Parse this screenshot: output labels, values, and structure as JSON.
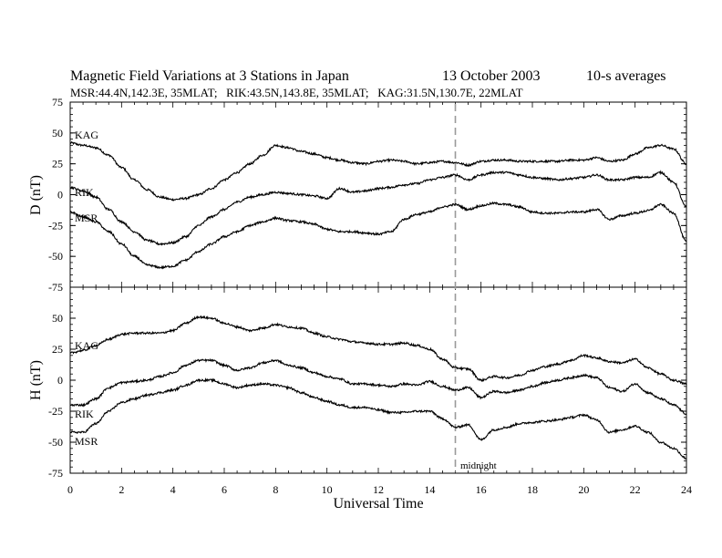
{
  "chart_data": {
    "type": "line",
    "title": "Magnetic Field Variations at 3 Stations in Japan",
    "date": "13 October 2003",
    "averaging": "10-s averages",
    "subtitle": "MSR:44.4N,142.3E, 35MLAT;   RIK:43.5N,143.8E, 35MLAT;   KAG:31.5N,130.7E, 22MLAT",
    "xlabel": "Universal Time",
    "xlim": [
      0,
      24
    ],
    "xticks": [
      0,
      2,
      4,
      6,
      8,
      10,
      12,
      14,
      16,
      18,
      20,
      22,
      24
    ],
    "marker": {
      "x": 15,
      "label": "midnight",
      "style": "dashed",
      "color": "#9a9a9a"
    },
    "panels": [
      {
        "ylabel": "D (nT)",
        "ylim": [
          -75,
          75
        ],
        "yticks": [
          -75,
          -50,
          -25,
          0,
          25,
          50,
          75
        ],
        "series": [
          {
            "name": "KAG",
            "x": [
              0,
              0.5,
              1,
              1.5,
              2,
              2.5,
              3,
              3.5,
              4,
              4.5,
              5,
              5.5,
              6,
              6.5,
              7,
              7.5,
              8,
              8.5,
              9,
              9.5,
              10,
              10.5,
              11,
              11.5,
              12,
              12.5,
              13,
              13.5,
              14,
              14.5,
              15,
              15.5,
              16,
              16.5,
              17,
              17.5,
              18,
              18.5,
              19,
              19.5,
              20,
              20.5,
              21,
              21.5,
              22,
              22.5,
              23,
              23.5,
              24
            ],
            "y": [
              42,
              40,
              38,
              32,
              22,
              12,
              4,
              -2,
              -4,
              -3,
              0,
              5,
              12,
              18,
              25,
              32,
              40,
              38,
              35,
              33,
              30,
              28,
              26,
              25,
              27,
              28,
              27,
              25,
              26,
              27,
              26,
              24,
              27,
              28,
              28,
              27,
              27,
              27,
              27,
              28,
              28,
              30,
              27,
              28,
              33,
              38,
              40,
              37,
              25
            ]
          },
          {
            "name": "RIK",
            "x": [
              0,
              0.5,
              1,
              1.5,
              2,
              2.5,
              3,
              3.5,
              4,
              4.5,
              5,
              5.5,
              6,
              6.5,
              7,
              7.5,
              8,
              8.5,
              9,
              9.5,
              10,
              10.5,
              11,
              11.5,
              12,
              12.5,
              13,
              13.5,
              14,
              14.5,
              15,
              15.5,
              16,
              16.5,
              17,
              17.5,
              18,
              18.5,
              19,
              19.5,
              20,
              20.5,
              21,
              21.5,
              22,
              22.5,
              23,
              23.5,
              24
            ],
            "y": [
              6,
              3,
              -2,
              -12,
              -22,
              -30,
              -37,
              -40,
              -39,
              -34,
              -25,
              -18,
              -12,
              -6,
              -2,
              0,
              2,
              1,
              0,
              -1,
              -3,
              5,
              2,
              3,
              5,
              6,
              8,
              9,
              12,
              14,
              16,
              12,
              16,
              18,
              18,
              16,
              14,
              13,
              12,
              13,
              14,
              16,
              12,
              12,
              14,
              14,
              18,
              10,
              -10
            ]
          },
          {
            "name": "MSR",
            "x": [
              0,
              0.5,
              1,
              1.5,
              2,
              2.5,
              3,
              3.5,
              4,
              4.5,
              5,
              5.5,
              6,
              6.5,
              7,
              7.5,
              8,
              8.5,
              9,
              9.5,
              10,
              10.5,
              11,
              11.5,
              12,
              12.5,
              13,
              13.5,
              14,
              14.5,
              15,
              15.5,
              16,
              16.5,
              17,
              17.5,
              18,
              18.5,
              19,
              19.5,
              20,
              20.5,
              21,
              21.5,
              22,
              22.5,
              23,
              23.5,
              24
            ],
            "y": [
              -14,
              -18,
              -22,
              -30,
              -40,
              -50,
              -57,
              -59,
              -58,
              -53,
              -46,
              -40,
              -34,
              -30,
              -25,
              -22,
              -19,
              -21,
              -22,
              -24,
              -28,
              -30,
              -30,
              -31,
              -32,
              -30,
              -20,
              -16,
              -14,
              -10,
              -8,
              -12,
              -9,
              -7,
              -8,
              -10,
              -14,
              -15,
              -15,
              -14,
              -14,
              -12,
              -20,
              -17,
              -15,
              -13,
              -8,
              -15,
              -38
            ]
          }
        ]
      },
      {
        "ylabel": "H (nT)",
        "ylim": [
          -75,
          75
        ],
        "yticks": [
          -75,
          -50,
          -25,
          0,
          25,
          50,
          75
        ],
        "series": [
          {
            "name": "KAG",
            "x": [
              0,
              0.5,
              1,
              1.5,
              2,
              2.5,
              3,
              3.5,
              4,
              4.5,
              5,
              5.5,
              6,
              6.5,
              7,
              7.5,
              8,
              8.5,
              9,
              9.5,
              10,
              10.5,
              11,
              11.5,
              12,
              12.5,
              13,
              13.5,
              14,
              14.5,
              15,
              15.5,
              16,
              16.5,
              17,
              17.5,
              18,
              18.5,
              19,
              19.5,
              20,
              20.5,
              21,
              21.5,
              22,
              22.5,
              23,
              23.5,
              24
            ],
            "y": [
              22,
              24,
              28,
              33,
              37,
              38,
              38,
              38,
              40,
              46,
              51,
              50,
              46,
              43,
              40,
              42,
              45,
              43,
              42,
              38,
              35,
              33,
              31,
              30,
              29,
              29,
              30,
              28,
              25,
              17,
              10,
              9,
              0,
              3,
              2,
              4,
              8,
              11,
              13,
              16,
              20,
              18,
              15,
              14,
              17,
              10,
              5,
              0,
              -3
            ]
          },
          {
            "name": "RIK",
            "x": [
              0,
              0.5,
              1,
              1.5,
              2,
              2.5,
              3,
              3.5,
              4,
              4.5,
              5,
              5.5,
              6,
              6.5,
              7,
              7.5,
              8,
              8.5,
              9,
              9.5,
              10,
              10.5,
              11,
              11.5,
              12,
              12.5,
              13,
              13.5,
              14,
              14.5,
              15,
              15.5,
              16,
              16.5,
              17,
              17.5,
              18,
              18.5,
              19,
              19.5,
              20,
              20.5,
              21,
              21.5,
              22,
              22.5,
              23,
              23.5,
              24
            ],
            "y": [
              -20,
              -20,
              -15,
              -6,
              -2,
              -1,
              0,
              3,
              6,
              12,
              16,
              16,
              12,
              8,
              10,
              14,
              16,
              12,
              10,
              6,
              3,
              1,
              -3,
              -3,
              -4,
              -5,
              -3,
              -4,
              -1,
              -5,
              -8,
              -6,
              -14,
              -9,
              -10,
              -8,
              -5,
              -2,
              0,
              2,
              4,
              2,
              -6,
              -9,
              -3,
              -10,
              -15,
              -20,
              -27
            ]
          },
          {
            "name": "MSR",
            "x": [
              0,
              0.5,
              1,
              1.5,
              2,
              2.5,
              3,
              3.5,
              4,
              4.5,
              5,
              5.5,
              6,
              6.5,
              7,
              7.5,
              8,
              8.5,
              9,
              9.5,
              10,
              10.5,
              11,
              11.5,
              12,
              12.5,
              13,
              13.5,
              14,
              14.5,
              15,
              15.5,
              16,
              16.5,
              17,
              17.5,
              18,
              18.5,
              19,
              19.5,
              20,
              20.5,
              21,
              21.5,
              22,
              22.5,
              23,
              23.5,
              24
            ],
            "y": [
              -42,
              -42,
              -35,
              -25,
              -18,
              -15,
              -12,
              -10,
              -8,
              -4,
              0,
              0,
              -3,
              -6,
              -4,
              -3,
              -4,
              -6,
              -10,
              -14,
              -17,
              -20,
              -22,
              -22,
              -24,
              -26,
              -26,
              -25,
              -25,
              -31,
              -38,
              -36,
              -48,
              -40,
              -38,
              -35,
              -34,
              -33,
              -32,
              -30,
              -28,
              -32,
              -42,
              -40,
              -37,
              -42,
              -50,
              -55,
              -63
            ]
          }
        ]
      }
    ],
    "labels": {
      "d_kag": "KAG",
      "d_rik": "RIK",
      "d_msr": "MSR",
      "h_kag": "KAG",
      "h_rik": "RIK",
      "h_msr": "MSR"
    }
  }
}
